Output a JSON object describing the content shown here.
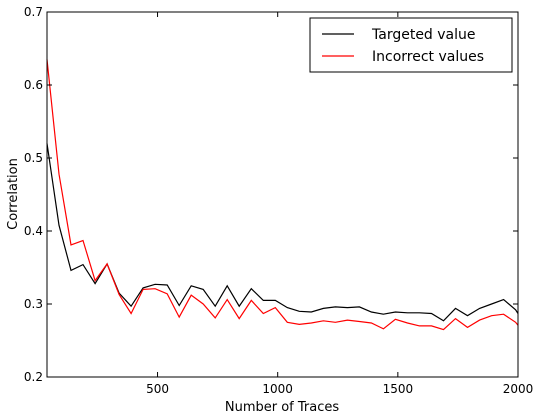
{
  "chart_data": {
    "type": "line",
    "xlabel": "Number of Traces",
    "ylabel": "Correlation",
    "xlim": [
      40,
      2000
    ],
    "ylim": [
      0.2,
      0.7
    ],
    "xticks": [
      500,
      1000,
      1500,
      2000
    ],
    "yticks": [
      0.2,
      0.3,
      0.4,
      0.5,
      0.6,
      0.7
    ],
    "grid": false,
    "legend_position": "top-right",
    "series": [
      {
        "name": "Targeted value",
        "color": "#000000",
        "x": [
          40,
          90,
          140,
          190,
          240,
          290,
          340,
          390,
          440,
          490,
          540,
          590,
          640,
          690,
          740,
          790,
          840,
          890,
          940,
          990,
          1040,
          1090,
          1140,
          1190,
          1240,
          1290,
          1340,
          1390,
          1440,
          1490,
          1540,
          1590,
          1640,
          1690,
          1740,
          1790,
          1840,
          1890,
          1940,
          1990,
          2000
        ],
        "y": [
          0.52,
          0.408,
          0.346,
          0.354,
          0.328,
          0.355,
          0.315,
          0.297,
          0.322,
          0.327,
          0.326,
          0.298,
          0.325,
          0.32,
          0.297,
          0.325,
          0.297,
          0.321,
          0.305,
          0.305,
          0.295,
          0.29,
          0.289,
          0.294,
          0.296,
          0.295,
          0.296,
          0.289,
          0.286,
          0.289,
          0.288,
          0.288,
          0.287,
          0.277,
          0.294,
          0.284,
          0.294,
          0.3,
          0.306,
          0.292,
          0.287
        ]
      },
      {
        "name": "Incorrect values",
        "color": "#ff0000",
        "x": [
          40,
          90,
          140,
          190,
          240,
          290,
          340,
          390,
          440,
          490,
          540,
          590,
          640,
          690,
          740,
          790,
          840,
          890,
          940,
          990,
          1040,
          1090,
          1140,
          1190,
          1240,
          1290,
          1340,
          1390,
          1440,
          1490,
          1540,
          1590,
          1640,
          1690,
          1740,
          1790,
          1840,
          1890,
          1940,
          1990,
          2000
        ],
        "y": [
          0.635,
          0.478,
          0.381,
          0.387,
          0.332,
          0.355,
          0.313,
          0.287,
          0.32,
          0.321,
          0.314,
          0.282,
          0.312,
          0.3,
          0.281,
          0.306,
          0.28,
          0.305,
          0.287,
          0.295,
          0.275,
          0.272,
          0.274,
          0.277,
          0.275,
          0.278,
          0.276,
          0.274,
          0.266,
          0.279,
          0.274,
          0.27,
          0.27,
          0.265,
          0.28,
          0.268,
          0.278,
          0.284,
          0.286,
          0.275,
          0.271
        ]
      }
    ]
  }
}
